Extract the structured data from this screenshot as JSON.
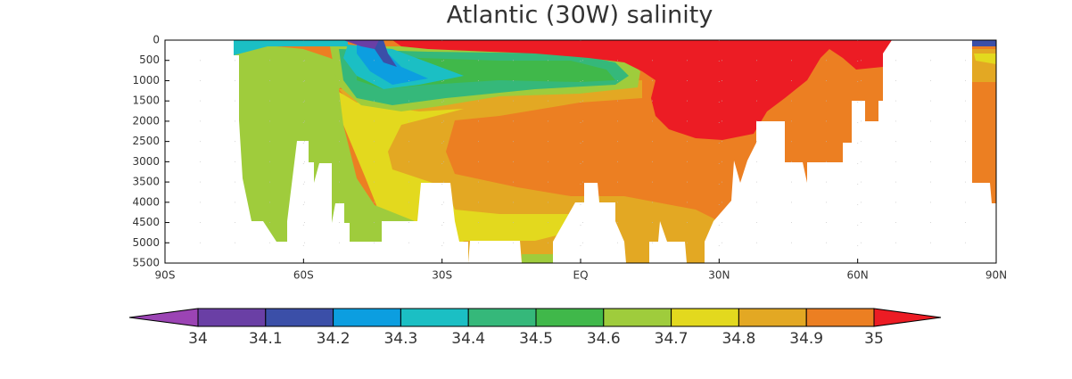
{
  "chart_data": {
    "type": "contour",
    "title": "Atlantic (30W) salinity",
    "xlim": [
      -90,
      90
    ],
    "xticks": [
      {
        "value": -90,
        "label": "90S"
      },
      {
        "value": -60,
        "label": "60S"
      },
      {
        "value": -30,
        "label": "30S"
      },
      {
        "value": 0,
        "label": "EQ"
      },
      {
        "value": 30,
        "label": "30N"
      },
      {
        "value": 60,
        "label": "60N"
      },
      {
        "value": 90,
        "label": "90N"
      }
    ],
    "ylim": [
      0,
      5500
    ],
    "y_inverted": true,
    "yticks": [
      0,
      500,
      1000,
      1500,
      2000,
      2500,
      3000,
      3500,
      4000,
      4500,
      5000,
      5500
    ],
    "grid": true,
    "colorbar": {
      "levels": [
        34,
        34.1,
        34.2,
        34.3,
        34.4,
        34.5,
        34.6,
        34.7,
        34.8,
        34.9,
        35
      ],
      "colors": [
        "#9b44b4",
        "#6a3fa5",
        "#3b4fa8",
        "#0c9ee0",
        "#1bbfc4",
        "#35b87a",
        "#40b84a",
        "#9fcc3c",
        "#e3d91e",
        "#e3a823",
        "#ec7f22",
        "#ec1c24"
      ]
    }
  }
}
